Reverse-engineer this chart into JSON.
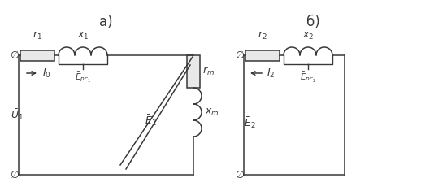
{
  "bg_color": "#ffffff",
  "line_color": "#383838",
  "label_a": "а)",
  "label_b": "б)",
  "fig_width": 5.5,
  "fig_height": 2.4,
  "dpi": 100,
  "lw": 1.1
}
